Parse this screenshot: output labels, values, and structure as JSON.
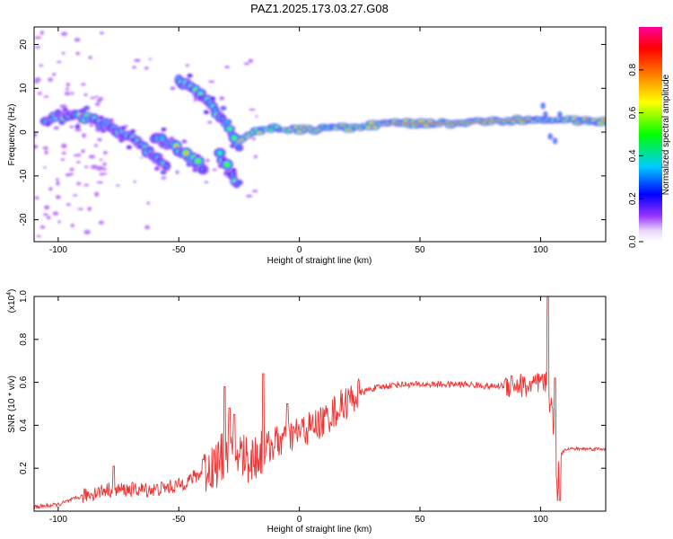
{
  "title": "PAZ1.2025.173.03.27.G08",
  "chart_data": [
    {
      "type": "heatmap",
      "xlabel": "Height of straight line (km)",
      "ylabel": "Frequency (Hz)",
      "xlim": [
        -110,
        127
      ],
      "ylim": [
        -25,
        24
      ],
      "xticks": [
        -100,
        -50,
        0,
        50,
        100
      ],
      "yticks": [
        -20,
        -10,
        0,
        10,
        20
      ],
      "colorbar": {
        "label": "Normalized spectral amplitude",
        "range": [
          0,
          1
        ],
        "ticks": [
          0.0,
          0.2,
          0.4,
          0.6,
          0.8
        ],
        "tick_labels": [
          "0.0",
          "0.2",
          "0.4",
          "0.6",
          "0.8"
        ],
        "colormap": "rainbow (violet-blue-cyan-green-yellow-red-magenta)"
      },
      "ridges": [
        {
          "x": [
            -105,
            -95,
            -85,
            -75,
            -65,
            -55
          ],
          "f": [
            3,
            4,
            3,
            0,
            -3,
            -8
          ]
        },
        {
          "x": [
            -60,
            -50,
            -45,
            -40
          ],
          "f": [
            -1,
            -4,
            -6,
            -8
          ]
        },
        {
          "x": [
            -50,
            -40,
            -30,
            -25
          ],
          "f": [
            12,
            8,
            2,
            -4
          ]
        },
        {
          "x": [
            -33,
            -30,
            -27,
            -25
          ],
          "f": [
            -5,
            -8,
            -11,
            -12
          ]
        },
        {
          "x": [
            -25,
            -20,
            -10,
            0,
            20,
            40,
            60,
            80,
            100,
            127
          ],
          "f": [
            -2,
            0,
            1,
            0.5,
            1,
            2,
            2,
            2.5,
            3,
            2.5
          ]
        }
      ]
    },
    {
      "type": "line",
      "xlabel": "Height of straight line (km)",
      "ylabel": "SNR (10 * v/v)",
      "y_multiplier": "(x10",
      "y_multiplier_exp": "4",
      "y_multiplier_close": ")",
      "xlim": [
        -110,
        127
      ],
      "ylim": [
        0,
        1.0
      ],
      "xticks": [
        -100,
        -50,
        0,
        50,
        100
      ],
      "yticks": [
        0.2,
        0.4,
        0.6,
        0.8,
        1.0
      ],
      "line_color": "#ee3333",
      "envelope": {
        "x": [
          -110,
          -100,
          -90,
          -80,
          -70,
          -60,
          -50,
          -40,
          -35,
          -30,
          -25,
          -20,
          -15,
          -10,
          -5,
          0,
          5,
          10,
          15,
          20,
          25,
          30,
          40,
          50,
          60,
          70,
          80,
          90,
          95,
          100,
          102,
          105,
          107,
          108,
          110,
          115,
          120,
          127
        ],
        "y": [
          0.02,
          0.03,
          0.07,
          0.1,
          0.1,
          0.1,
          0.12,
          0.18,
          0.22,
          0.26,
          0.27,
          0.24,
          0.28,
          0.32,
          0.34,
          0.37,
          0.39,
          0.42,
          0.47,
          0.51,
          0.55,
          0.57,
          0.59,
          0.59,
          0.59,
          0.59,
          0.58,
          0.59,
          0.58,
          0.59,
          0.6,
          0.45,
          0.1,
          0.25,
          0.29,
          0.29,
          0.29,
          0.29
        ]
      },
      "spikes": [
        {
          "x": -77,
          "y": 0.21
        },
        {
          "x": -40,
          "y": 0.24
        },
        {
          "x": -31,
          "y": 0.58
        },
        {
          "x": -29,
          "y": 0.48
        },
        {
          "x": -27,
          "y": 0.45
        },
        {
          "x": -15,
          "y": 0.64
        },
        {
          "x": -5,
          "y": 0.5
        },
        {
          "x": 88,
          "y": 0.63
        },
        {
          "x": 103,
          "y": 1.0
        },
        {
          "x": 106,
          "y": 0.62
        },
        {
          "x": 108,
          "y": 0.05
        }
      ]
    }
  ]
}
